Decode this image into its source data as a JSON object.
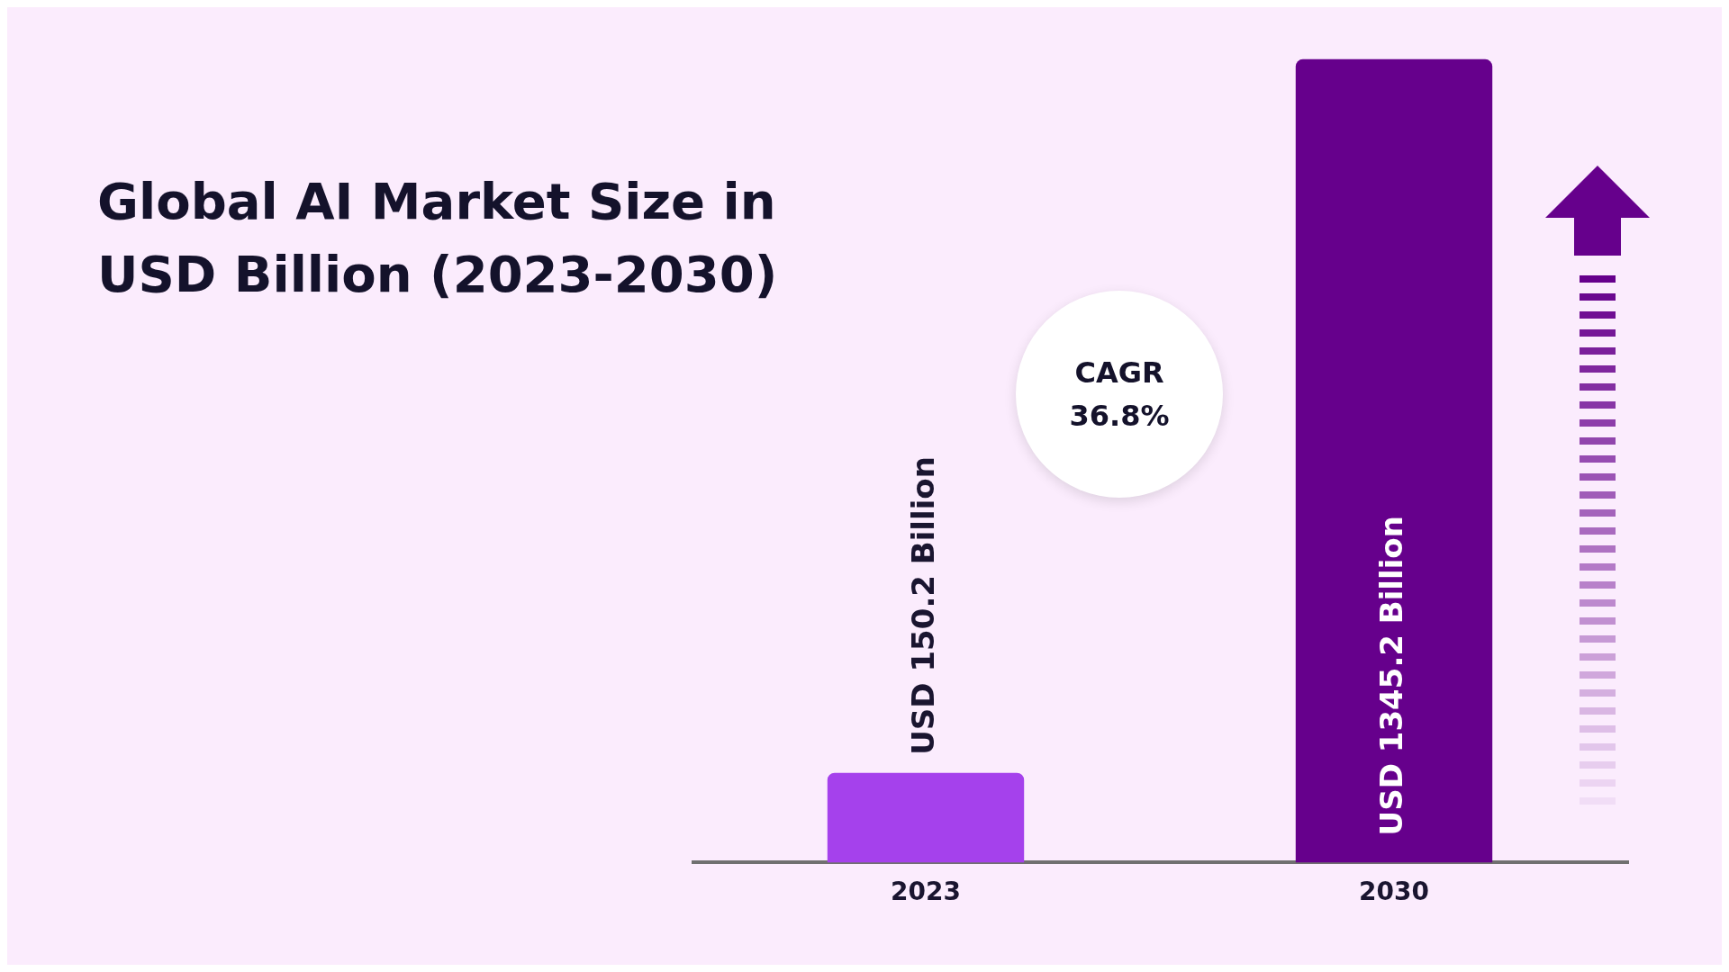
{
  "chart_data": {
    "type": "bar",
    "title": "Global AI Market Size in USD Billion (2023-2030)",
    "categories": [
      "2023",
      "2030"
    ],
    "values": [
      150.2,
      1345.2
    ],
    "colors": [
      "#a541ec",
      "#66008c"
    ],
    "value_labels": [
      "USD 150.2 Billion",
      "USD 1345.2 Billion"
    ],
    "annotations": [
      "CAGR 36.8%"
    ],
    "grid": false,
    "legend": false
  }
}
